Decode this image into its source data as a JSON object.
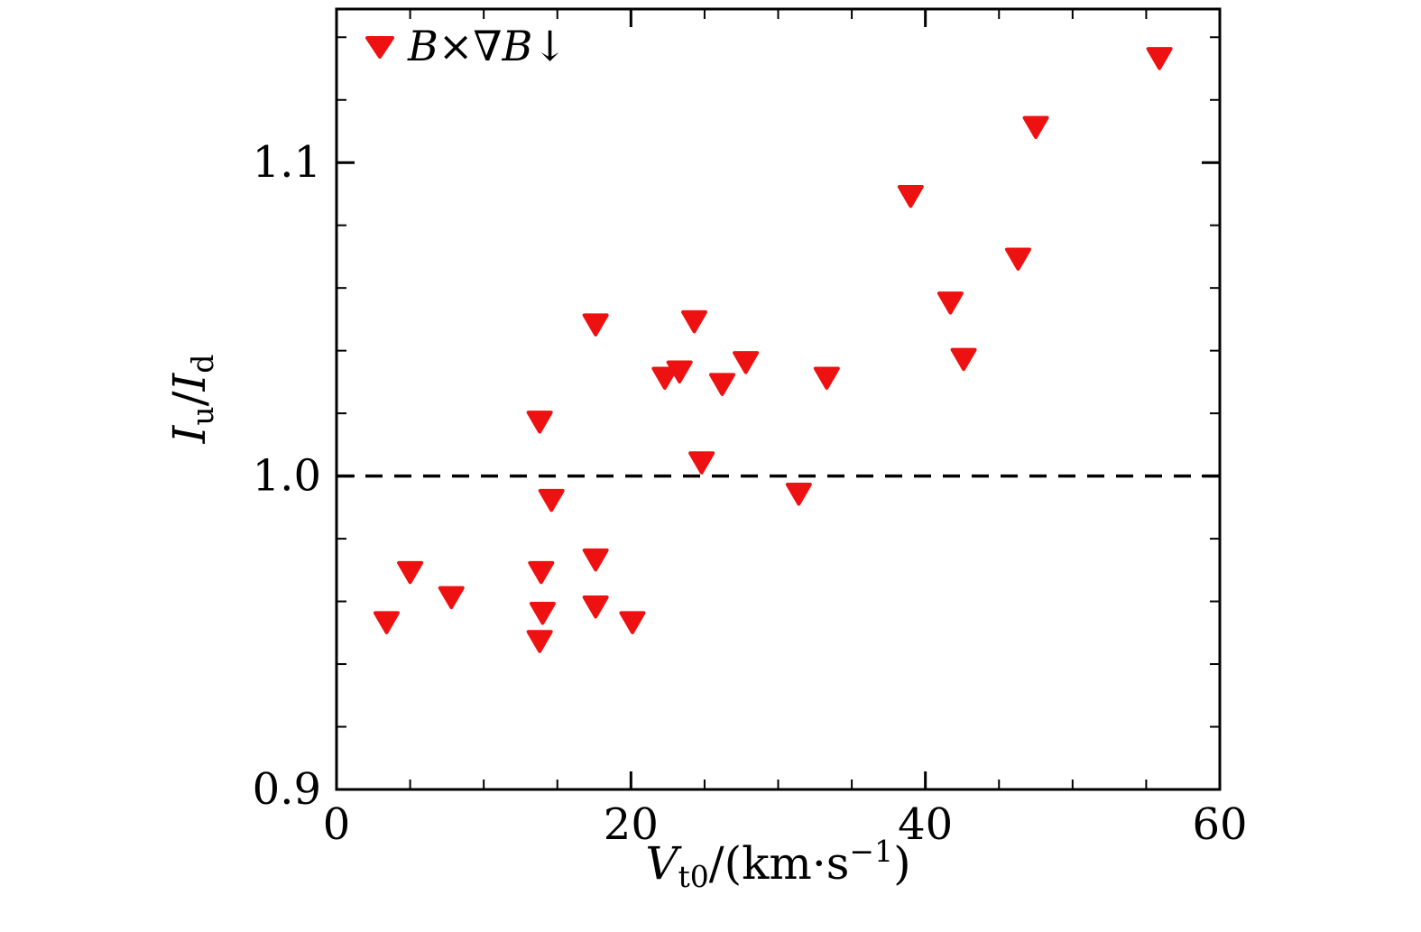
{
  "chart_data": {
    "type": "scatter",
    "title": "",
    "xlabel": "V_t0/(km·s^−1)",
    "ylabel": "I_u/I_d",
    "xlim": [
      0,
      60
    ],
    "ylim": [
      0.9,
      1.149
    ],
    "grid": false,
    "legend_position": "top-left",
    "reference_line": {
      "y": 1.0,
      "style": "dashed",
      "color": "#000000"
    },
    "x_ticks": {
      "values": [
        0,
        20,
        40,
        60
      ],
      "labels": [
        "0",
        "20",
        "40",
        "60"
      ],
      "minor": [
        5,
        10,
        15,
        25,
        30,
        35,
        45,
        50,
        55
      ]
    },
    "y_ticks": {
      "values": [
        0.9,
        1.0,
        1.1
      ],
      "labels": [
        "0.9",
        "1.0",
        "1.1"
      ],
      "minor": [
        0.92,
        0.94,
        0.96,
        0.98,
        1.02,
        1.04,
        1.06,
        1.08,
        1.12,
        1.14
      ]
    },
    "series": [
      {
        "name": "B×∇B↓",
        "marker": "triangle-down",
        "color": "#ee1111",
        "points": [
          [
            3.4,
            0.954
          ],
          [
            5.0,
            0.97
          ],
          [
            7.8,
            0.962
          ],
          [
            13.8,
            1.018
          ],
          [
            13.9,
            0.97
          ],
          [
            14.0,
            0.957
          ],
          [
            13.8,
            0.948
          ],
          [
            14.6,
            0.993
          ],
          [
            17.6,
            1.049
          ],
          [
            17.6,
            0.974
          ],
          [
            17.6,
            0.959
          ],
          [
            20.1,
            0.954
          ],
          [
            22.3,
            1.032
          ],
          [
            23.3,
            1.034
          ],
          [
            24.3,
            1.05
          ],
          [
            24.8,
            1.005
          ],
          [
            26.2,
            1.03
          ],
          [
            27.8,
            1.037
          ],
          [
            31.4,
            0.995
          ],
          [
            33.3,
            1.032
          ],
          [
            39.0,
            1.09
          ],
          [
            41.7,
            1.056
          ],
          [
            42.6,
            1.038
          ],
          [
            46.3,
            1.07
          ],
          [
            47.5,
            1.112
          ],
          [
            55.9,
            1.134
          ]
        ]
      }
    ]
  },
  "legend": {
    "b1": "B",
    "op": "×∇",
    "b2": "B",
    "arrow": "↓"
  },
  "xlabel_parts": {
    "var": "V",
    "sub": "t0",
    "mid": "/(km·s",
    "sup": "−1",
    "end": ")"
  },
  "ylabel_parts": {
    "i1": "I",
    "s1": "u",
    "slash": "/",
    "i2": "I",
    "s2": "d"
  }
}
